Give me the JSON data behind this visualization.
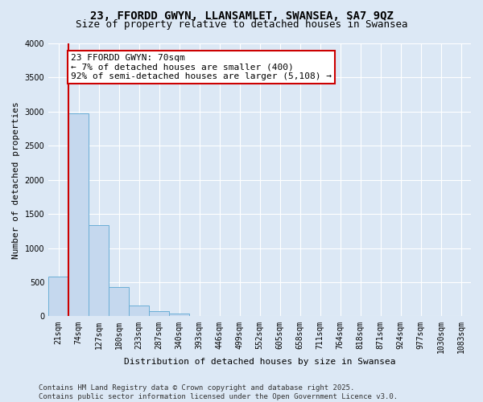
{
  "title_line1": "23, FFORDD GWYN, LLANSAMLET, SWANSEA, SA7 9QZ",
  "title_line2": "Size of property relative to detached houses in Swansea",
  "xlabel": "Distribution of detached houses by size in Swansea",
  "ylabel": "Number of detached properties",
  "categories": [
    "21sqm",
    "74sqm",
    "127sqm",
    "180sqm",
    "233sqm",
    "287sqm",
    "340sqm",
    "393sqm",
    "446sqm",
    "499sqm",
    "552sqm",
    "605sqm",
    "658sqm",
    "711sqm",
    "764sqm",
    "818sqm",
    "871sqm",
    "924sqm",
    "977sqm",
    "1030sqm",
    "1083sqm"
  ],
  "values": [
    580,
    2970,
    1340,
    430,
    155,
    80,
    45,
    10,
    5,
    3,
    2,
    1,
    1,
    0,
    0,
    0,
    0,
    0,
    0,
    0,
    0
  ],
  "bar_color": "#c5d8ee",
  "bar_edge_color": "#6aaed6",
  "red_line_x": 0.5,
  "annotation_text_line1": "23 FFORDD GWYN: 70sqm",
  "annotation_text_line2": "← 7% of detached houses are smaller (400)",
  "annotation_text_line3": "92% of semi-detached houses are larger (5,108) →",
  "annotation_box_facecolor": "#ffffff",
  "annotation_box_edgecolor": "#cc0000",
  "red_line_color": "#cc0000",
  "ylim": [
    0,
    4000
  ],
  "yticks": [
    0,
    500,
    1000,
    1500,
    2000,
    2500,
    3000,
    3500,
    4000
  ],
  "bg_color": "#dce8f5",
  "plot_bg_color": "#dce8f5",
  "grid_color": "#ffffff",
  "title_fontsize": 10,
  "subtitle_fontsize": 9,
  "axis_label_fontsize": 8,
  "tick_fontsize": 7,
  "annot_fontsize": 8,
  "footer_fontsize": 6.5,
  "footer_line1": "Contains HM Land Registry data © Crown copyright and database right 2025.",
  "footer_line2": "Contains public sector information licensed under the Open Government Licence v3.0."
}
